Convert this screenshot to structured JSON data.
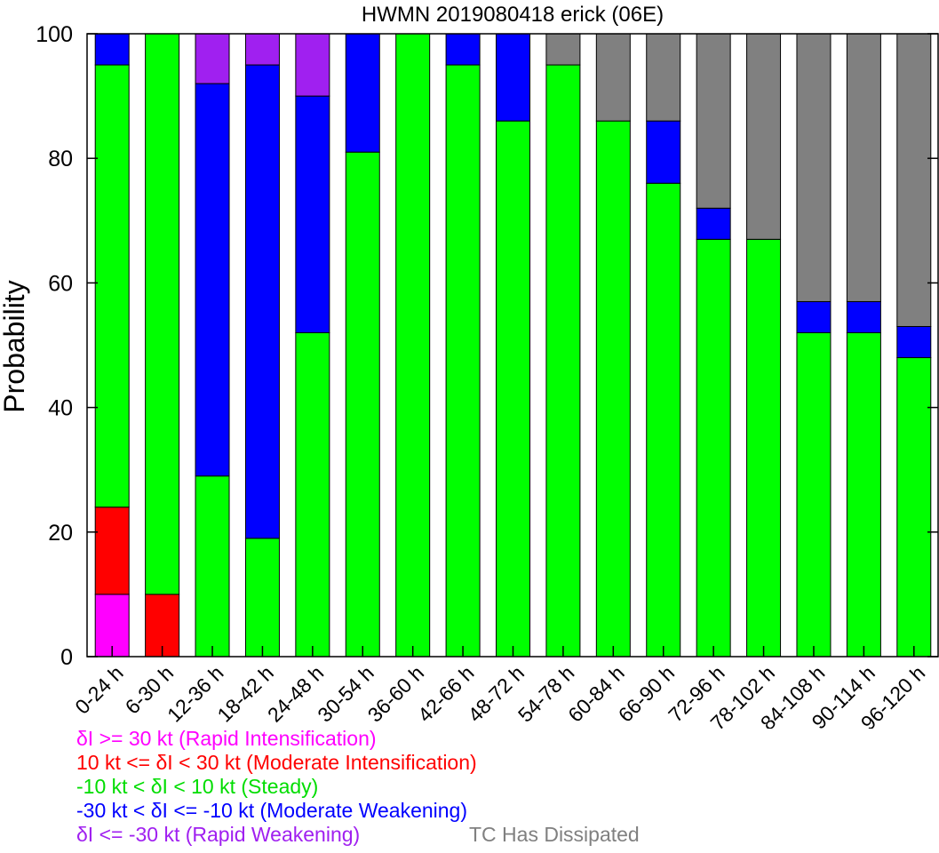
{
  "colors": {
    "rapid_intensification": "#ff00ff",
    "moderate_intensification": "#ff0000",
    "steady": "#00ff00",
    "moderate_weakening": "#0000ff",
    "rapid_weakening": "#a020f0",
    "dissipated": "#808080"
  },
  "legend": {
    "ri": "δI >= 30 kt (Rapid Intensification)",
    "mi": "10 kt <= δI < 30 kt (Moderate Intensification)",
    "steady": "-10 kt < δI < 10 kt (Steady)",
    "mw": "-30 kt < δI <= -10 kt (Moderate Weakening)",
    "rw": "δI <= -30 kt (Rapid Weakening)",
    "dissipated": "TC Has Dissipated"
  },
  "chart_data": {
    "type": "bar",
    "stacked": true,
    "title": "HWMN 2019080418 erick (06E)",
    "xlabel": "",
    "ylabel": "Probability",
    "ylim": [
      0,
      100
    ],
    "yticks": [
      0,
      20,
      40,
      60,
      80,
      100
    ],
    "grid": false,
    "categories": [
      "0-24 h",
      "6-30 h",
      "12-36 h",
      "18-42 h",
      "24-48 h",
      "30-54 h",
      "36-60 h",
      "42-66 h",
      "48-72 h",
      "54-78 h",
      "60-84 h",
      "66-90 h",
      "72-96 h",
      "78-102 h",
      "84-108 h",
      "90-114 h",
      "96-120 h"
    ],
    "series": [
      {
        "key": "rapid_intensification",
        "values": [
          10,
          0,
          0,
          0,
          0,
          0,
          0,
          0,
          0,
          0,
          0,
          0,
          0,
          0,
          0,
          0,
          0
        ]
      },
      {
        "key": "moderate_intensification",
        "values": [
          14,
          10,
          0,
          0,
          0,
          0,
          0,
          0,
          0,
          0,
          0,
          0,
          0,
          0,
          0,
          0,
          0
        ]
      },
      {
        "key": "steady",
        "values": [
          71,
          90,
          29,
          19,
          52,
          81,
          100,
          95,
          86,
          95,
          86,
          76,
          67,
          67,
          52,
          52,
          48
        ]
      },
      {
        "key": "moderate_weakening",
        "values": [
          5,
          0,
          63,
          76,
          38,
          19,
          0,
          5,
          14,
          0,
          0,
          10,
          5,
          0,
          5,
          5,
          5
        ]
      },
      {
        "key": "rapid_weakening",
        "values": [
          0,
          0,
          8,
          5,
          10,
          0,
          0,
          0,
          0,
          0,
          0,
          0,
          0,
          0,
          0,
          0,
          0
        ]
      },
      {
        "key": "dissipated",
        "values": [
          0,
          0,
          0,
          0,
          0,
          0,
          0,
          0,
          0,
          5,
          14,
          14,
          28,
          33,
          43,
          43,
          47
        ]
      }
    ]
  }
}
